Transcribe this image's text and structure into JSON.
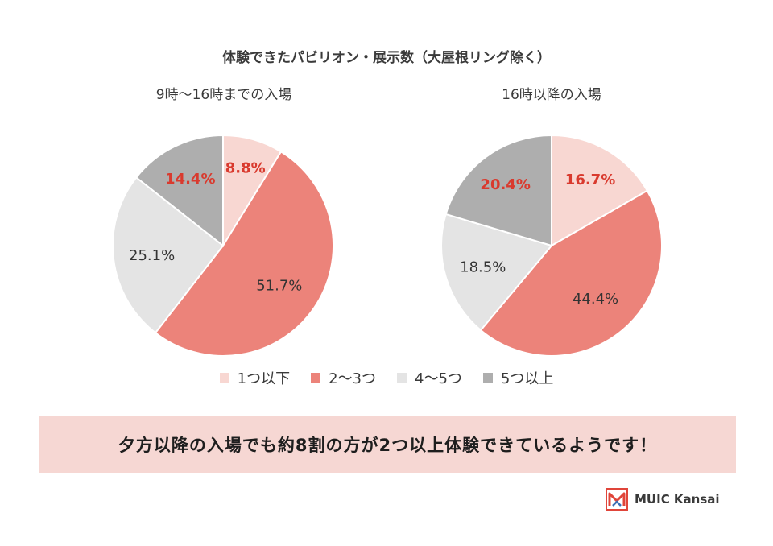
{
  "title": "体験できたパビリオン・展示数（大屋根リング除く）",
  "legend": [
    "1つ以下",
    "2〜3つ",
    "4〜5つ",
    "5つ以上"
  ],
  "colors": [
    "#f8d7d2",
    "#ec837a",
    "#e4e4e4",
    "#aeaeae"
  ],
  "label_colors": [
    "#d93a2e",
    "#333333",
    "#333333",
    "#d93a2e"
  ],
  "chart_data": [
    {
      "type": "pie",
      "title": "9時〜16時までの入場",
      "labels": [
        "1つ以下",
        "2〜3つ",
        "4〜5つ",
        "5つ以上"
      ],
      "values": [
        8.8,
        51.7,
        25.1,
        14.4
      ],
      "value_labels": [
        "8.8%",
        "51.7%",
        "25.1%",
        "14.4%"
      ]
    },
    {
      "type": "pie",
      "title": "16時以降の入場",
      "labels": [
        "1つ以下",
        "2〜3つ",
        "4〜5つ",
        "5つ以上"
      ],
      "values": [
        16.7,
        44.4,
        18.5,
        20.4
      ],
      "value_labels": [
        "16.7%",
        "44.4%",
        "18.5%",
        "20.4%"
      ]
    }
  ],
  "banner": "夕方以降の入場でも約8割の方が2つ以上体験できているようです！",
  "brand": {
    "name": "MUIC Kansai"
  }
}
